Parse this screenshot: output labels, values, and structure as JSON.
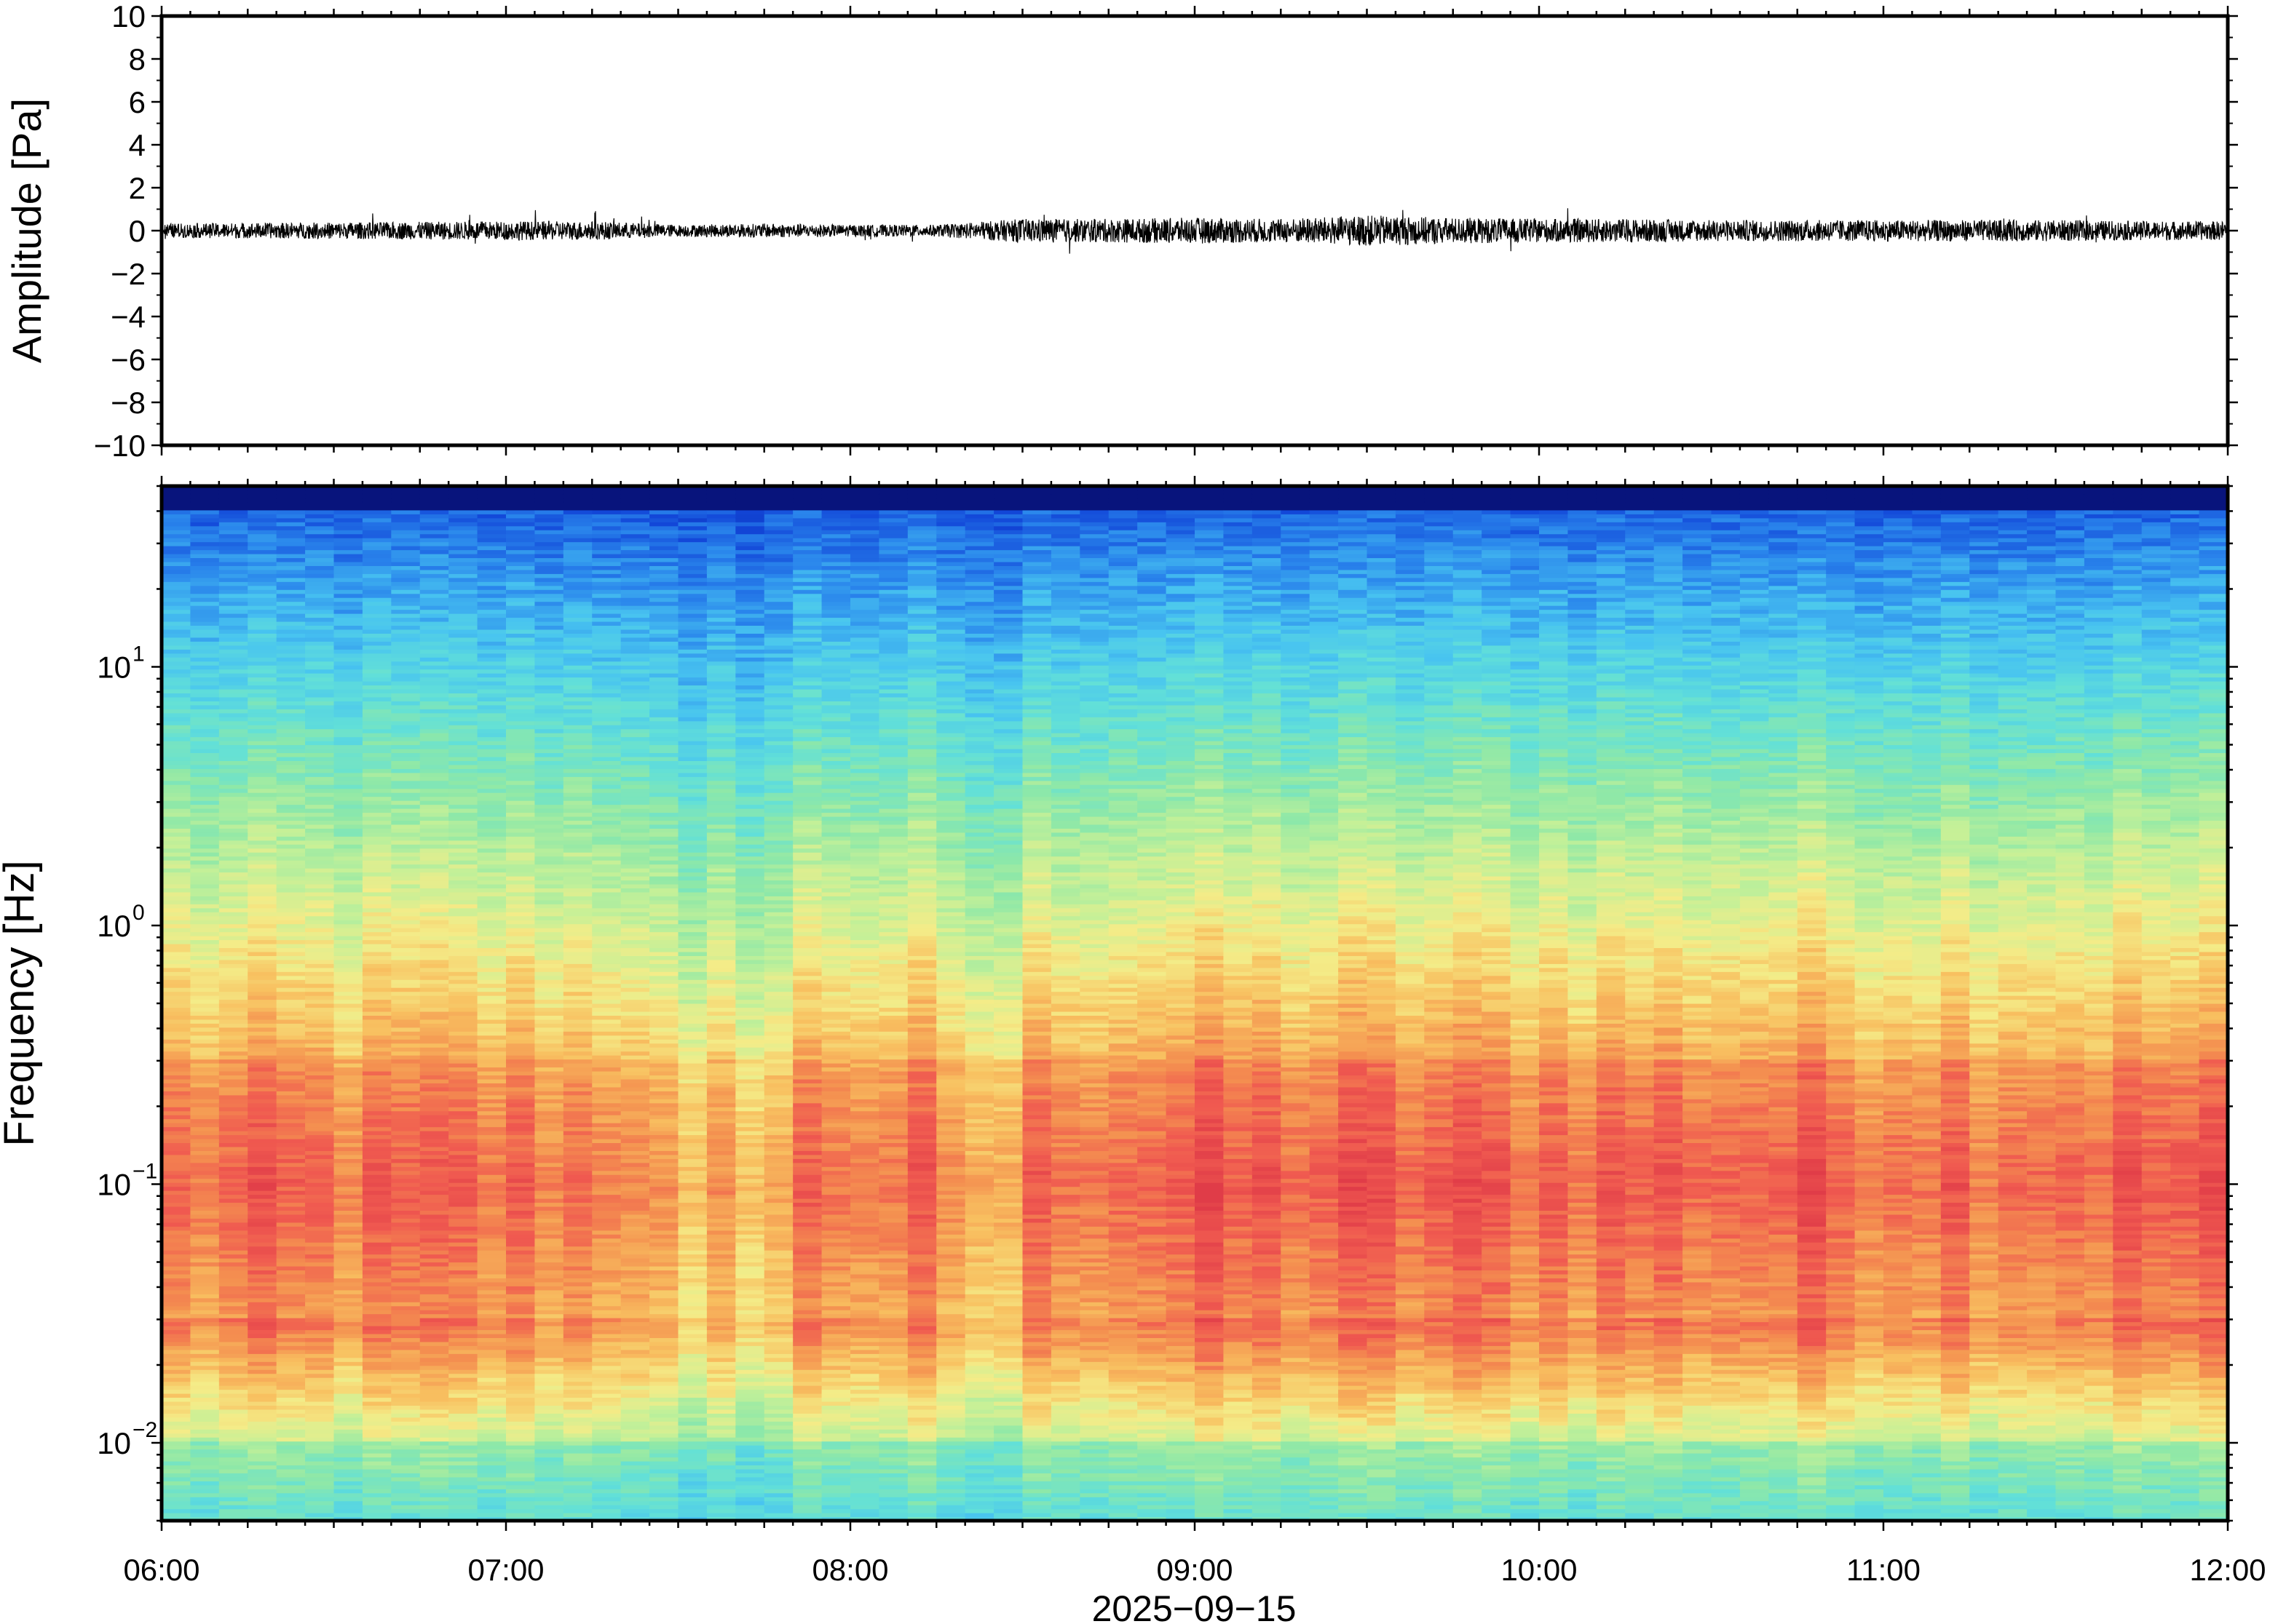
{
  "chart_data": [
    {
      "type": "line",
      "panel": "waveform",
      "ylabel": "Amplitude [Pa]",
      "ylim": [
        -10,
        10
      ],
      "yticks": [
        10,
        8,
        6,
        4,
        2,
        0,
        -2,
        -4,
        -6,
        -8,
        -10
      ],
      "ytick_labels": [
        "10",
        "8",
        "6",
        "4",
        "2",
        "0",
        "−2",
        "−4",
        "−6",
        "−8",
        "−10"
      ],
      "xlim": [
        "06:00",
        "12:00"
      ],
      "grid": false,
      "series": [
        {
          "description_of_envelope_hours_to_peak_pa": "approximate amplitude envelope read from trace",
          "x_hours": [
            6.0,
            6.5,
            7.0,
            7.25,
            7.5,
            7.75,
            8.0,
            8.25,
            8.5,
            8.75,
            9.0,
            9.25,
            9.5,
            9.75,
            10.0,
            10.25,
            10.5,
            10.75,
            11.0,
            11.25,
            11.5,
            11.75,
            12.0
          ],
          "envelope_pa": [
            0.6,
            0.7,
            0.8,
            0.8,
            0.5,
            0.6,
            0.5,
            0.5,
            1.0,
            1.0,
            1.1,
            1.0,
            1.3,
            1.1,
            1.0,
            1.0,
            0.9,
            0.9,
            0.9,
            0.9,
            0.9,
            0.8,
            0.8
          ]
        }
      ]
    },
    {
      "type": "heatmap",
      "panel": "spectrogram",
      "ylabel": "Frequency [Hz]",
      "xlabel": "2025−09−15",
      "yscale": "log",
      "ylim": [
        0.005,
        50
      ],
      "yticks": [
        {
          "base": "10",
          "exp": "1"
        },
        {
          "base": "10",
          "exp": "0"
        },
        {
          "base": "10",
          "exp": "−1"
        },
        {
          "base": "10",
          "exp": "−2"
        }
      ],
      "xticks": [
        "06:00",
        "07:00",
        "08:00",
        "09:00",
        "10:00",
        "11:00",
        "12:00"
      ],
      "xlim": [
        "06:00",
        "12:00"
      ],
      "colormap": "rainbow (blue = low power, red = high power)",
      "colors": [
        "#08147c",
        "#1246d8",
        "#2a86ec",
        "#48c4f0",
        "#62e0d8",
        "#8ee8a8",
        "#c4f098",
        "#f4ec88",
        "#f8c060",
        "#f49050",
        "#f05a50",
        "#e03c48"
      ],
      "low_power_columns_hours": [
        7.5,
        7.6,
        7.75,
        8.35,
        8.45
      ],
      "high_power_band_hz": [
        0.03,
        0.3
      ]
    }
  ]
}
